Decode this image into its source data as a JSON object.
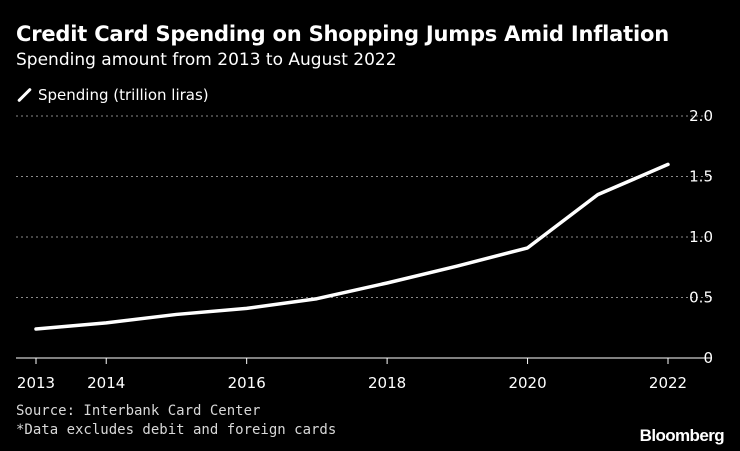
{
  "header": {
    "title": "Credit Card Spending on Shopping Jumps Amid Inflation",
    "subtitle": "Spending amount from 2013 to August 2022"
  },
  "legend": {
    "label": "Spending (trillion liras)"
  },
  "footer": {
    "source": "Source: Interbank Card Center",
    "note": "*Data excludes debit and foreign cards",
    "brand": "Bloomberg"
  },
  "colors": {
    "background": "#000000",
    "line": "#ffffff",
    "grid": "#8a8a8a",
    "axis": "#ffffff"
  },
  "chart_data": {
    "type": "line",
    "title": "Credit Card Spending on Shopping Jumps Amid Inflation",
    "subtitle": "Spending amount from 2013 to August 2022",
    "xlabel": "",
    "ylabel": "",
    "x": [
      2013,
      2014,
      2015,
      2016,
      2017,
      2018,
      2019,
      2020,
      2021,
      2022
    ],
    "x_tick_labels": [
      "2013",
      "2014",
      "2016",
      "2018",
      "2020",
      "2022"
    ],
    "x_tick_values": [
      2013,
      2014,
      2016,
      2018,
      2020,
      2022
    ],
    "xlim": [
      2013,
      2022
    ],
    "ylim": [
      0,
      2.0
    ],
    "y_ticks": [
      0,
      0.5,
      1.0,
      1.5,
      2.0
    ],
    "y_tick_labels": [
      "0",
      "0.5",
      "1.0",
      "1.5",
      "2.0"
    ],
    "grid": true,
    "legend_position": "top-left",
    "series": [
      {
        "name": "Spending (trillion liras)",
        "values": [
          0.24,
          0.29,
          0.36,
          0.41,
          0.49,
          0.62,
          0.76,
          0.91,
          1.35,
          1.6
        ]
      }
    ]
  }
}
